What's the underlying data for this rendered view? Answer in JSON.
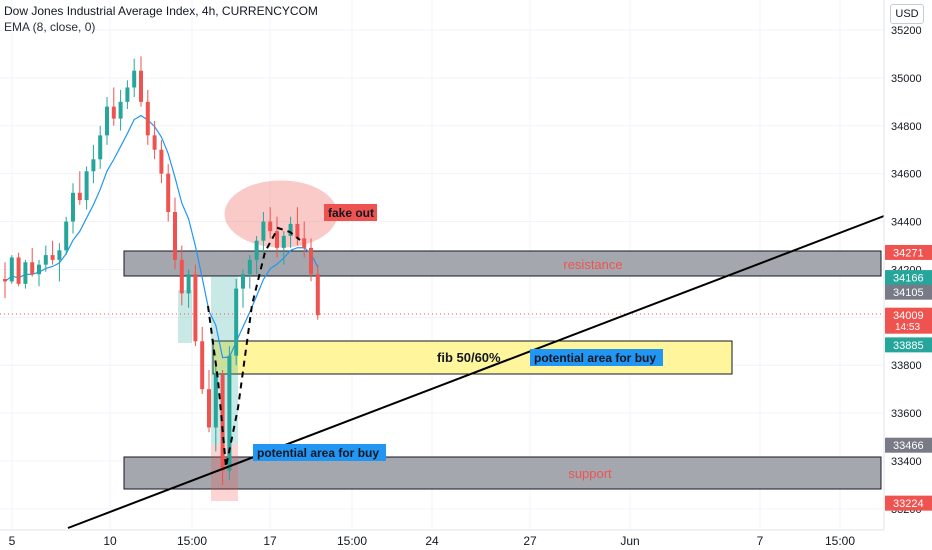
{
  "header": {
    "title": "Dow Jones Industrial Average Index, 4h, CURRENCYCOM",
    "indicator": "EMA (8, close, 0)"
  },
  "currency_button": "USD",
  "colors": {
    "up": "#26a69a",
    "down": "#ef5350",
    "ema": "#2196f3",
    "last_price_line": "#ef5350",
    "zone_gray": "#a5a7ae",
    "zone_yellow": "#fff59d",
    "label_blue": "#2196f3",
    "label_red": "#ef5350",
    "grid": "#f0f3fa"
  },
  "annotations": {
    "resistance": "resistance",
    "support": "support",
    "fib": "fib 50/60%",
    "buy_area_1": "potential area for buy",
    "buy_area_2": "potential area for buy",
    "fake_out": "fake out"
  },
  "chart_data": {
    "type": "candlestick",
    "title": "Dow Jones Industrial Average Index, 4h, CURRENCYCOM",
    "ylim": [
      33150,
      35250
    ],
    "y_ticks": [
      33200,
      33400,
      33600,
      33800,
      34000,
      34200,
      34400,
      34600,
      34800,
      35000,
      35200
    ],
    "x_tick_labels": [
      "5",
      "10",
      "15:00",
      "17",
      "15:00",
      "24",
      "27",
      "Jun",
      "7",
      "15:00"
    ],
    "grid": true,
    "price_labels": [
      {
        "value": 34271,
        "text": "34271",
        "color": "#ef5350"
      },
      {
        "value": 34166,
        "text": "34166",
        "color": "#26a69a"
      },
      {
        "value": 34105,
        "text": "34105",
        "color": "#787b86"
      },
      {
        "value": 34009,
        "text": "34009",
        "sub": "14:53",
        "color": "#ef5350"
      },
      {
        "value": 33885,
        "text": "33885",
        "color": "#26a69a"
      },
      {
        "value": 33466,
        "text": "33466",
        "color": "#787b86"
      },
      {
        "value": 33224,
        "text": "33224",
        "color": "#ef5350"
      }
    ],
    "last_price": 34009,
    "candles": [
      [
        34160,
        34230,
        34080,
        34150
      ],
      [
        34150,
        34260,
        34140,
        34250
      ],
      [
        34250,
        34270,
        34130,
        34140
      ],
      [
        34140,
        34240,
        34120,
        34230
      ],
      [
        34230,
        34290,
        34170,
        34180
      ],
      [
        34180,
        34240,
        34130,
        34220
      ],
      [
        34220,
        34300,
        34190,
        34260
      ],
      [
        34260,
        34320,
        34220,
        34240
      ],
      [
        34240,
        34310,
        34150,
        34280
      ],
      [
        34280,
        34420,
        34260,
        34400
      ],
      [
        34400,
        34560,
        34350,
        34520
      ],
      [
        34520,
        34610,
        34470,
        34490
      ],
      [
        34490,
        34630,
        34450,
        34610
      ],
      [
        34610,
        34720,
        34560,
        34660
      ],
      [
        34660,
        34800,
        34620,
        34760
      ],
      [
        34760,
        34920,
        34720,
        34880
      ],
      [
        34880,
        34960,
        34800,
        34830
      ],
      [
        34830,
        34950,
        34780,
        34900
      ],
      [
        34900,
        34990,
        34870,
        34960
      ],
      [
        34960,
        35080,
        34920,
        35030
      ],
      [
        35030,
        35090,
        34880,
        34900
      ],
      [
        34900,
        34950,
        34720,
        34760
      ],
      [
        34760,
        34820,
        34660,
        34700
      ],
      [
        34700,
        34740,
        34560,
        34600
      ],
      [
        34600,
        34640,
        34400,
        34440
      ],
      [
        34440,
        34500,
        34200,
        34240
      ],
      [
        34240,
        34300,
        34050,
        34100
      ],
      [
        34100,
        34200,
        34040,
        34180
      ],
      [
        34180,
        34220,
        33880,
        33900
      ],
      [
        33900,
        33960,
        33680,
        33700
      ],
      [
        33700,
        33780,
        33520,
        33540
      ],
      [
        33540,
        33800,
        33440,
        33760
      ],
      [
        33760,
        33780,
        33300,
        33360
      ],
      [
        33360,
        33880,
        33320,
        33840
      ],
      [
        33840,
        34160,
        33800,
        34120
      ],
      [
        34120,
        34200,
        34040,
        34180
      ],
      [
        34180,
        34260,
        34120,
        34240
      ],
      [
        34240,
        34340,
        34180,
        34320
      ],
      [
        34320,
        34440,
        34270,
        34400
      ],
      [
        34400,
        34460,
        34330,
        34360
      ],
      [
        34360,
        34420,
        34250,
        34290
      ],
      [
        34290,
        34360,
        34220,
        34340
      ],
      [
        34340,
        34420,
        34290,
        34390
      ],
      [
        34390,
        34460,
        34300,
        34330
      ],
      [
        34330,
        34400,
        34250,
        34290
      ],
      [
        34290,
        34330,
        34150,
        34180
      ],
      [
        34180,
        34220,
        33990,
        34009
      ]
    ]
  }
}
